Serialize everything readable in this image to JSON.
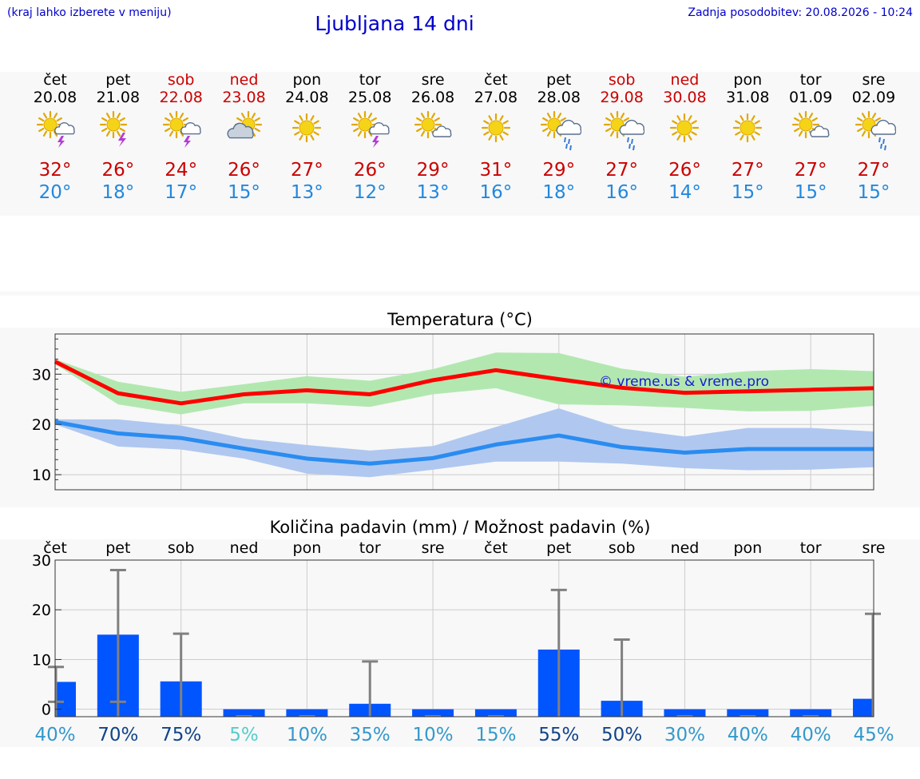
{
  "header": {
    "hint": "(kraj lahko izberete v meniju)",
    "title": "Ljubljana 14 dni",
    "updated": "Zadnja posodobitev: 20.08.2026 - 10:24"
  },
  "days": [
    {
      "name": "čet",
      "date": "20.08",
      "icon": "sun-cloud-thunder-icon",
      "tmax": "32°",
      "tmin": "20°",
      "weekend": false
    },
    {
      "name": "pet",
      "date": "21.08",
      "icon": "sun-thunder-icon",
      "tmax": "26°",
      "tmin": "18°",
      "weekend": false
    },
    {
      "name": "sob",
      "date": "22.08",
      "icon": "sun-cloud-thunder-icon",
      "tmax": "24°",
      "tmin": "17°",
      "weekend": true
    },
    {
      "name": "ned",
      "date": "23.08",
      "icon": "sun-behind-cloud-icon",
      "tmax": "26°",
      "tmin": "15°",
      "weekend": true
    },
    {
      "name": "pon",
      "date": "24.08",
      "icon": "sun-icon",
      "tmax": "27°",
      "tmin": "13°",
      "weekend": false
    },
    {
      "name": "tor",
      "date": "25.08",
      "icon": "sun-cloud-thunder-icon",
      "tmax": "26°",
      "tmin": "12°",
      "weekend": false
    },
    {
      "name": "sre",
      "date": "26.08",
      "icon": "sun-small-cloud-icon",
      "tmax": "29°",
      "tmin": "13°",
      "weekend": false
    },
    {
      "name": "čet",
      "date": "27.08",
      "icon": "sun-icon",
      "tmax": "31°",
      "tmin": "16°",
      "weekend": false
    },
    {
      "name": "pet",
      "date": "28.08",
      "icon": "sun-cloud-rain-icon",
      "tmax": "29°",
      "tmin": "18°",
      "weekend": false
    },
    {
      "name": "sob",
      "date": "29.08",
      "icon": "sun-cloud-rain-icon",
      "tmax": "27°",
      "tmin": "16°",
      "weekend": true
    },
    {
      "name": "ned",
      "date": "30.08",
      "icon": "sun-icon",
      "tmax": "26°",
      "tmin": "14°",
      "weekend": true
    },
    {
      "name": "pon",
      "date": "31.08",
      "icon": "sun-icon",
      "tmax": "27°",
      "tmin": "15°",
      "weekend": false
    },
    {
      "name": "tor",
      "date": "01.09",
      "icon": "sun-small-cloud-icon",
      "tmax": "27°",
      "tmin": "15°",
      "weekend": false
    },
    {
      "name": "sre",
      "date": "02.09",
      "icon": "sun-cloud-rain-icon",
      "tmax": "27°",
      "tmin": "15°",
      "weekend": false
    }
  ],
  "colors": {
    "max": "#ff0000",
    "max_band": "#b2e8b0",
    "min": "#2a8cf0",
    "min_band": "#b0c8f0",
    "bar": "#0055ff",
    "whisker": "#808080"
  },
  "chart_data": [
    {
      "type": "line",
      "title": "Temperatura (°C)",
      "watermark": "© vreme.us & vreme.pro",
      "x": [
        0,
        1,
        2,
        3,
        4,
        5,
        6,
        7,
        8,
        9,
        10,
        11,
        12,
        13
      ],
      "ylim": [
        7,
        38
      ],
      "yticks": [
        10,
        20,
        30
      ],
      "grid": true,
      "series": [
        {
          "values": [
            32.5,
            26.2,
            24.2,
            26,
            26.8,
            26,
            28.8,
            30.8,
            29,
            27.3,
            26.3,
            26.6,
            26.9,
            27.2
          ]
        },
        {
          "values": [
            20.5,
            18.2,
            17.3,
            15.2,
            13.2,
            12.2,
            13.3,
            16,
            17.8,
            15.5,
            14.4,
            15.1,
            15.1,
            15.1
          ]
        }
      ],
      "bands": [
        {
          "low": [
            32,
            24,
            22,
            24.2,
            24.2,
            23.5,
            26,
            27.2,
            24,
            23.8,
            23.3,
            22.6,
            22.7,
            23.7
          ],
          "high": [
            33,
            28.5,
            26.5,
            28,
            29.6,
            28.7,
            31,
            34.3,
            34.2,
            31.1,
            29.5,
            30.6,
            31,
            30.6
          ]
        },
        {
          "low": [
            20,
            15.6,
            15,
            13.2,
            10.2,
            9.5,
            11,
            12.6,
            12.6,
            12.2,
            11.3,
            10.9,
            11,
            11.5
          ],
          "high": [
            21,
            21,
            19.8,
            17.2,
            15.9,
            14.8,
            15.7,
            19.5,
            23.2,
            19.2,
            17.6,
            19.3,
            19.3,
            18.6
          ]
        }
      ]
    },
    {
      "type": "bar",
      "title": "Količina padavin (mm) / Možnost padavin (%)",
      "categories": [
        "čet",
        "pet",
        "sob",
        "ned",
        "pon",
        "tor",
        "sre",
        "čet",
        "pet",
        "sob",
        "ned",
        "pon",
        "tor",
        "sre"
      ],
      "values": [
        5.5,
        15,
        5.6,
        0,
        0,
        1.1,
        0,
        0,
        12,
        1.7,
        0,
        0,
        0,
        2.1
      ],
      "whisker_low": [
        1.5,
        1.5,
        0,
        0,
        0,
        0,
        0,
        0,
        0,
        0,
        0,
        0,
        0,
        0
      ],
      "whisker_high": [
        8.5,
        28,
        15.2,
        0,
        0,
        9.6,
        0,
        0,
        24,
        14,
        0,
        0,
        0,
        19.2
      ],
      "probability_labels": [
        "40%",
        "70%",
        "75%",
        "5%",
        "10%",
        "35%",
        "10%",
        "15%",
        "55%",
        "50%",
        "30%",
        "40%",
        "40%",
        "45%"
      ],
      "probability_colors": [
        "#3399cc",
        "#114488",
        "#114488",
        "#55cccc",
        "#3399cc",
        "#3399cc",
        "#3399cc",
        "#3399cc",
        "#114488",
        "#114488",
        "#3399cc",
        "#3399cc",
        "#3399cc",
        "#3399cc"
      ],
      "ylim": [
        -1.5,
        30
      ],
      "yticks": [
        0,
        10,
        20,
        30
      ],
      "grid": true
    }
  ]
}
